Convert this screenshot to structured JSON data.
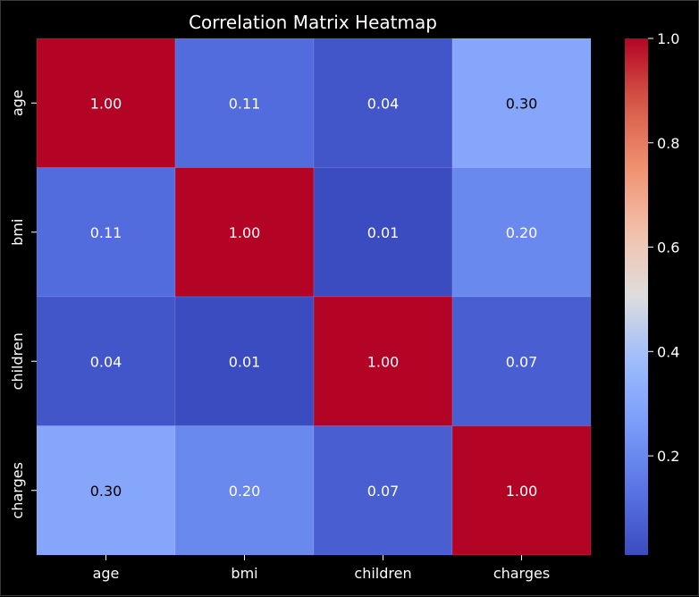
{
  "chart_data": {
    "type": "heatmap",
    "title": "Correlation Matrix Heatmap",
    "row_labels": [
      "age",
      "bmi",
      "children",
      "charges"
    ],
    "col_labels": [
      "age",
      "bmi",
      "children",
      "charges"
    ],
    "values": [
      [
        1.0,
        0.11,
        0.04,
        0.3
      ],
      [
        0.11,
        1.0,
        0.01,
        0.2
      ],
      [
        0.04,
        0.01,
        1.0,
        0.07
      ],
      [
        0.3,
        0.2,
        0.07,
        1.0
      ]
    ],
    "annotations": [
      [
        "1.00",
        "0.11",
        "0.04",
        "0.30"
      ],
      [
        "0.11",
        "1.00",
        "0.01",
        "0.20"
      ],
      [
        "0.04",
        "0.01",
        "1.00",
        "0.07"
      ],
      [
        "0.30",
        "0.20",
        "0.07",
        "1.00"
      ]
    ],
    "colormap": "coolwarm",
    "colorbar": {
      "range": [
        0.01,
        1.0
      ],
      "ticks": [
        0.2,
        0.4,
        0.6,
        0.8,
        1.0
      ],
      "tick_labels": [
        "0.2",
        "0.4",
        "0.6",
        "0.8",
        "1.0"
      ]
    },
    "xlabel": "",
    "ylabel": ""
  },
  "colors": {
    "background": "#000000",
    "text": "#ffffff",
    "cell_border": "#ffffff"
  }
}
